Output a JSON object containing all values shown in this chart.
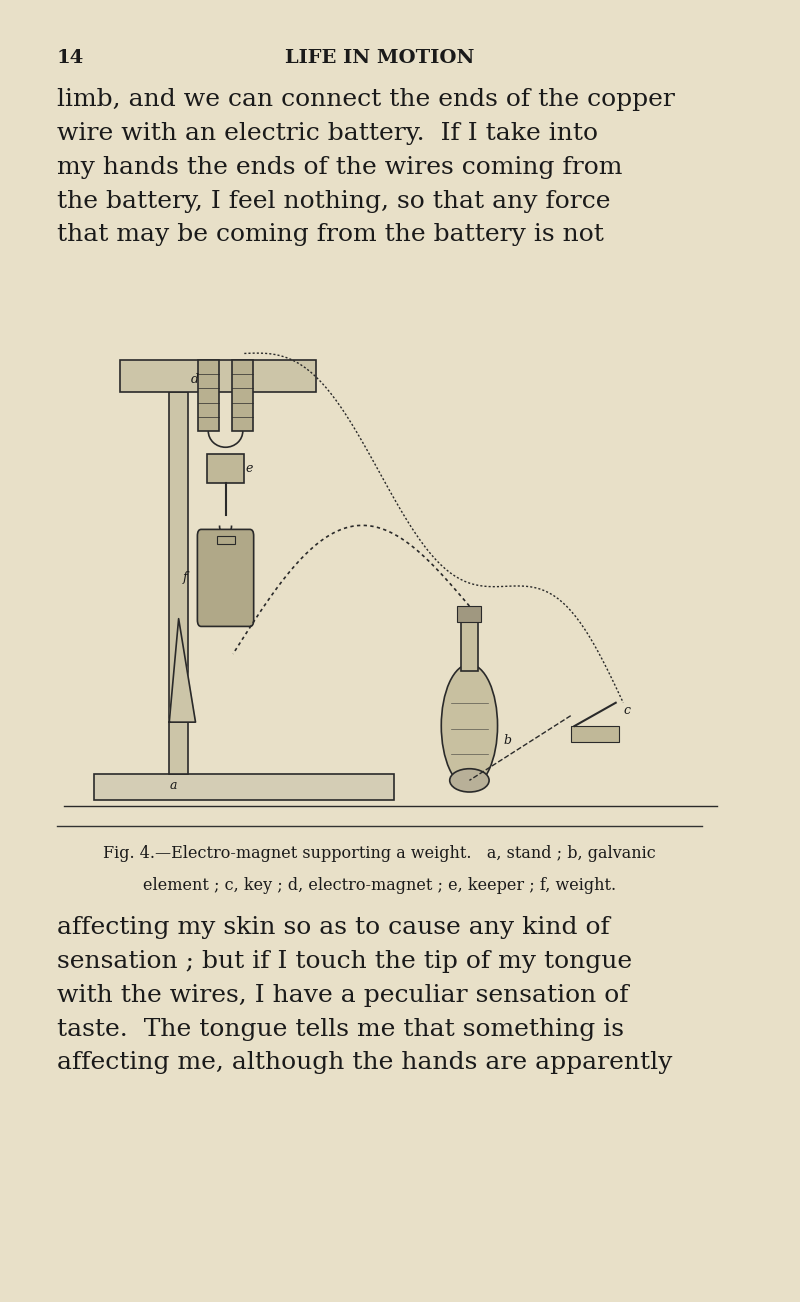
{
  "background_color": "#e8e0c8",
  "page_width": 8.0,
  "page_height": 13.02,
  "page_number": "14",
  "header_title": "LIFE IN MOTION",
  "top_text": "limb, and we can connect the ends of the copper\nwire with an electric battery.  If I take into\nmy hands the ends of the wires coming from\nthe battery, I feel nothing, so that any force\nthat may be coming from the battery is not",
  "caption_line1": "Fig. 4.—Electro-magnet supporting a weight.   a, stand ; b, galvanic",
  "caption_line2": "element ; c, key ; d, electro-magnet ; e, keeper ; f, weight.",
  "bottom_text": "affecting my skin so as to cause any kind of\nsensation ; but if I touch the tip of my tongue\nwith the wires, I have a peculiar sensation of\ntaste.  The tongue tells me that something is\naffecting me, although the hands are apparently",
  "text_color": "#1a1a1a",
  "separator_color": "#333333",
  "font_size_body": 18,
  "font_size_header": 14,
  "font_size_caption": 11.5
}
